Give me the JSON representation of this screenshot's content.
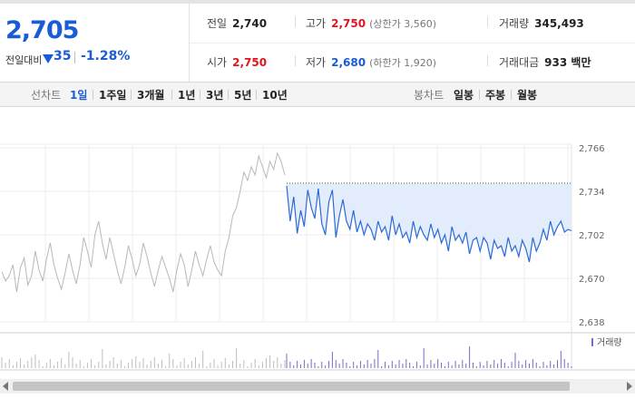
{
  "quote": {
    "price": "2,705",
    "change_label": "전일대비",
    "change_value": "35",
    "change_pct": "-1.28%",
    "prev_close_label": "전일",
    "prev_close": "2,740",
    "open_label": "시가",
    "open": "2,750",
    "high_label": "고가",
    "high": "2,750",
    "upper_limit": "(상한가 3,560)",
    "low_label": "저가",
    "low": "2,680",
    "lower_limit": "(하한가 1,920)",
    "volume_label": "거래량",
    "volume": "345,493",
    "amount_label": "거래대금",
    "amount": "933 백만"
  },
  "tabs": {
    "line_title": "선차트",
    "line_items": [
      "1일",
      "1주일",
      "3개월",
      "1년",
      "3년",
      "5년",
      "10년"
    ],
    "active": "1일",
    "candle_title": "봉차트",
    "candle_items": [
      "일봉",
      "주봉",
      "월봉"
    ]
  },
  "chart_data": {
    "type": "line",
    "y_ticks": [
      "2,766",
      "2,734",
      "2,702",
      "2,670",
      "2,638"
    ],
    "ylim": [
      2638,
      2766
    ],
    "reference_line": 2740,
    "volume_legend": "거래량",
    "colors": {
      "today": "#2a6ad8",
      "prev": "#b8b8b8",
      "fill": "#e3ecfb",
      "volume_today": "#7a6ac8"
    },
    "prev_day_prices": [
      2675,
      2668,
      2672,
      2680,
      2660,
      2678,
      2685,
      2665,
      2672,
      2690,
      2676,
      2668,
      2684,
      2696,
      2680,
      2670,
      2662,
      2674,
      2688,
      2676,
      2666,
      2680,
      2700,
      2690,
      2678,
      2702,
      2712,
      2696,
      2684,
      2700,
      2688,
      2676,
      2666,
      2678,
      2694,
      2684,
      2672,
      2680,
      2696,
      2686,
      2674,
      2664,
      2676,
      2686,
      2678,
      2670,
      2660,
      2676,
      2688,
      2680,
      2664,
      2676,
      2690,
      2680,
      2672,
      2684,
      2694,
      2682,
      2676,
      2672,
      2690,
      2700,
      2716,
      2722,
      2734,
      2748,
      2742,
      2752,
      2746,
      2760,
      2752,
      2744,
      2756,
      2750,
      2762,
      2756,
      2746
    ],
    "today_prices": [
      2738,
      2712,
      2730,
      2703,
      2720,
      2708,
      2735,
      2722,
      2714,
      2736,
      2710,
      2702,
      2726,
      2735,
      2700,
      2716,
      2728,
      2712,
      2706,
      2720,
      2704,
      2712,
      2702,
      2710,
      2706,
      2698,
      2712,
      2704,
      2708,
      2698,
      2716,
      2702,
      2710,
      2700,
      2704,
      2696,
      2712,
      2700,
      2708,
      2702,
      2698,
      2710,
      2700,
      2706,
      2696,
      2702,
      2690,
      2708,
      2698,
      2702,
      2696,
      2704,
      2688,
      2698,
      2700,
      2690,
      2700,
      2696,
      2684,
      2698,
      2692,
      2694,
      2686,
      2700,
      2690,
      2694,
      2686,
      2698,
      2692,
      2682,
      2700,
      2690,
      2696,
      2706,
      2698,
      2712,
      2702,
      2708,
      2712,
      2704,
      2706,
      2705
    ]
  }
}
